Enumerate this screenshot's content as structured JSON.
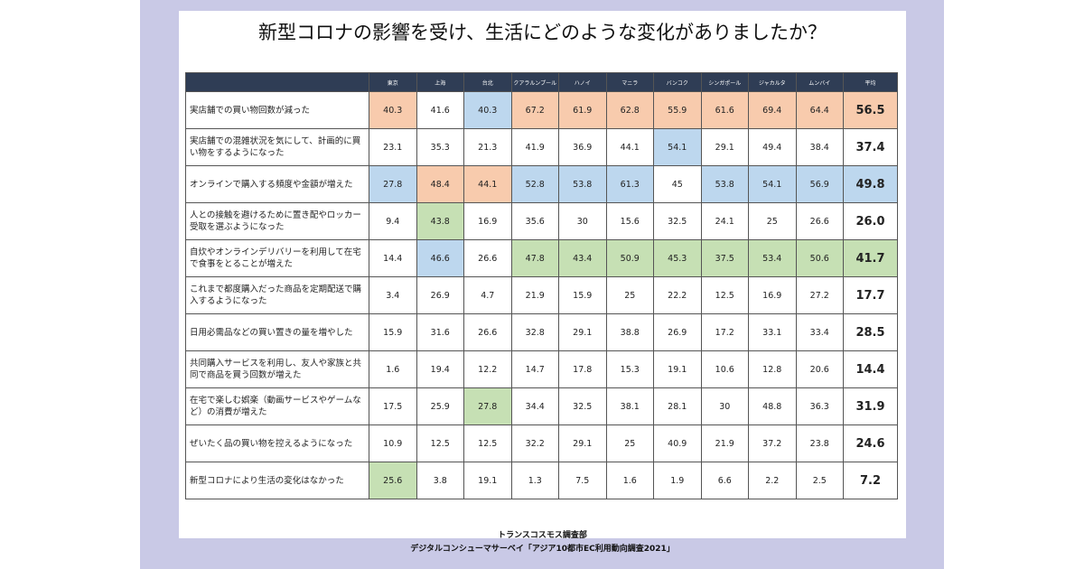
{
  "title": "新型コロナの影響を受け、生活にどのような変化がありましたか？",
  "table": {
    "header": [
      "東京",
      "上海",
      "台北",
      "クアラルンプール",
      "ハノイ",
      "マニラ",
      "バンコク",
      "シンガポール",
      "ジャカルタ",
      "ムンバイ",
      "平均"
    ],
    "colors": {
      "o": "#f8cbad",
      "b": "#bdd7ee",
      "g": "#c6e0b4"
    },
    "rows": [
      {
        "label": "実店舗での買い物回数が減った",
        "cells": [
          "40.3",
          "41.6",
          "40.3",
          "67.2",
          "61.9",
          "62.8",
          "55.9",
          "61.6",
          "69.4",
          "64.4",
          "56.5"
        ],
        "highlight": [
          "o",
          null,
          "b",
          "o",
          "o",
          "o",
          "o",
          "o",
          "o",
          "o",
          "o"
        ]
      },
      {
        "label": "実店舗での混雑状況を気にして、計画的に買い物をするようになった",
        "cells": [
          "23.1",
          "35.3",
          "21.3",
          "41.9",
          "36.9",
          "44.1",
          "54.1",
          "29.1",
          "49.4",
          "38.4",
          "37.4"
        ],
        "highlight": [
          null,
          null,
          null,
          null,
          null,
          null,
          "b",
          null,
          null,
          null,
          null
        ]
      },
      {
        "label": "オンラインで購入する頻度や金額が増えた",
        "cells": [
          "27.8",
          "48.4",
          "44.1",
          "52.8",
          "53.8",
          "61.3",
          "45",
          "53.8",
          "54.1",
          "56.9",
          "49.8"
        ],
        "highlight": [
          "b",
          "o",
          "o",
          "b",
          "b",
          "b",
          null,
          "b",
          "b",
          "b",
          "b"
        ]
      },
      {
        "label": "人との接触を避けるために置き配やロッカー受取を選ぶようになった",
        "cells": [
          "9.4",
          "43.8",
          "16.9",
          "35.6",
          "30",
          "15.6",
          "32.5",
          "24.1",
          "25",
          "26.6",
          "26.0"
        ],
        "highlight": [
          null,
          "g",
          null,
          null,
          null,
          null,
          null,
          null,
          null,
          null,
          null
        ]
      },
      {
        "label": "自炊やオンラインデリバリーを利用して在宅で食事をとることが増えた",
        "cells": [
          "14.4",
          "46.6",
          "26.6",
          "47.8",
          "43.4",
          "50.9",
          "45.3",
          "37.5",
          "53.4",
          "50.6",
          "41.7"
        ],
        "highlight": [
          null,
          "b",
          null,
          "g",
          "g",
          "g",
          "g",
          "g",
          "g",
          "g",
          "g"
        ]
      },
      {
        "label": "これまで都度購入だった商品を定期配送で購入するようになった",
        "cells": [
          "3.4",
          "26.9",
          "4.7",
          "21.9",
          "15.9",
          "25",
          "22.2",
          "12.5",
          "16.9",
          "27.2",
          "17.7"
        ],
        "highlight": [
          null,
          null,
          null,
          null,
          null,
          null,
          null,
          null,
          null,
          null,
          null
        ]
      },
      {
        "label": "日用必需品などの買い置きの量を増やした",
        "cells": [
          "15.9",
          "31.6",
          "26.6",
          "32.8",
          "29.1",
          "38.8",
          "26.9",
          "17.2",
          "33.1",
          "33.4",
          "28.5"
        ],
        "highlight": [
          null,
          null,
          null,
          null,
          null,
          null,
          null,
          null,
          null,
          null,
          null
        ]
      },
      {
        "label": "共同購入サービスを利用し、友人や家族と共同で商品を買う回数が増えた",
        "cells": [
          "1.6",
          "19.4",
          "12.2",
          "14.7",
          "17.8",
          "15.3",
          "19.1",
          "10.6",
          "12.8",
          "20.6",
          "14.4"
        ],
        "highlight": [
          null,
          null,
          null,
          null,
          null,
          null,
          null,
          null,
          null,
          null,
          null
        ]
      },
      {
        "label": "在宅で楽しむ娯楽（動画サービスやゲームなど）の消費が増えた",
        "cells": [
          "17.5",
          "25.9",
          "27.8",
          "34.4",
          "32.5",
          "38.1",
          "28.1",
          "30",
          "48.8",
          "36.3",
          "31.9"
        ],
        "highlight": [
          null,
          null,
          "g",
          null,
          null,
          null,
          null,
          null,
          null,
          null,
          null
        ]
      },
      {
        "label": "ぜいたく品の買い物を控えるようになった",
        "cells": [
          "10.9",
          "12.5",
          "12.5",
          "32.2",
          "29.1",
          "25",
          "40.9",
          "21.9",
          "37.2",
          "23.8",
          "24.6"
        ],
        "highlight": [
          null,
          null,
          null,
          null,
          null,
          null,
          null,
          null,
          null,
          null,
          null
        ]
      },
      {
        "label": "新型コロナにより生活の変化はなかった",
        "cells": [
          "25.6",
          "3.8",
          "19.1",
          "1.3",
          "7.5",
          "1.6",
          "1.9",
          "6.6",
          "2.2",
          "2.5",
          "7.2"
        ],
        "highlight": [
          "g",
          null,
          null,
          null,
          null,
          null,
          null,
          null,
          null,
          null,
          null
        ]
      }
    ]
  },
  "footer": [
    "トランスコスモス調査部",
    "デジタルコンシューマサーベイ「アジア10都市EC利用動向調査2021」"
  ]
}
